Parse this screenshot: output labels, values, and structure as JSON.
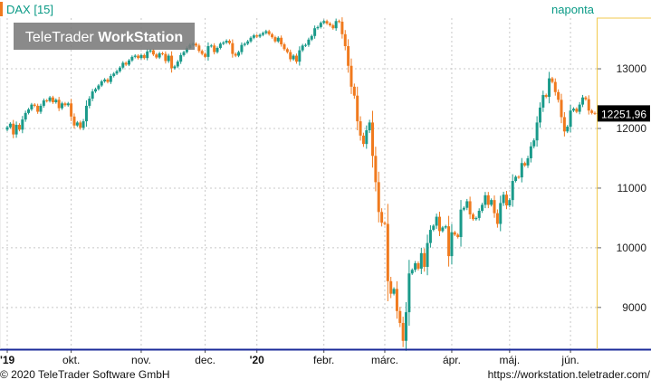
{
  "instrument": "DAX [15]",
  "period_label": "naponta",
  "watermark": {
    "brand": "TeleTrader",
    "product": "WorkStation"
  },
  "last_price_label": "12251,96",
  "footer": {
    "copyright": "© 2020 TeleTrader Software GmbH",
    "url": "https://workstation.teletrader.com/"
  },
  "colors": {
    "up": "#1a9a8a",
    "down": "#f07a1e",
    "accent_teal": "#0a9a86",
    "axis_bar": "#1a2a9a",
    "grid": "#c8c8c8",
    "right_axis_line": "#f2c94c",
    "price_tag_bg": "#000000"
  },
  "chart_data": {
    "type": "candlestick",
    "title": "DAX [15]",
    "interval": "naponta",
    "ylim": [
      8300,
      13850
    ],
    "yticks": [
      9000,
      10000,
      11000,
      12000,
      13000
    ],
    "ytick_labels": [
      "9000",
      "10000",
      "11000",
      "12000",
      "13000"
    ],
    "xticks": [
      {
        "label": "'19",
        "t": 0
      },
      {
        "label": "okt.",
        "t": 21
      },
      {
        "label": "nov.",
        "t": 44
      },
      {
        "label": "dec.",
        "t": 65
      },
      {
        "label": "'20",
        "t": 82
      },
      {
        "label": "febr.",
        "t": 104
      },
      {
        "label": "márc.",
        "t": 124
      },
      {
        "label": "ápr.",
        "t": 146
      },
      {
        "label": "máj.",
        "t": 165
      },
      {
        "label": "jún.",
        "t": 185
      }
    ],
    "last_value": 12251.96,
    "grid": true,
    "closes": [
      12020,
      12080,
      11900,
      12060,
      11980,
      12150,
      12260,
      12320,
      12400,
      12380,
      12280,
      12380,
      12470,
      12460,
      12520,
      12440,
      12480,
      12340,
      12420,
      12390,
      12420,
      12200,
      12050,
      12100,
      12010,
      12120,
      12380,
      12500,
      12620,
      12660,
      12720,
      12790,
      12820,
      12780,
      12880,
      12920,
      12960,
      13020,
      13100,
      13070,
      13140,
      13200,
      13220,
      13180,
      13230,
      13180,
      13290,
      13310,
      13240,
      13190,
      13260,
      13250,
      13130,
      13220,
      13010,
      13040,
      13120,
      13230,
      13280,
      13350,
      13400,
      13420,
      13390,
      13300,
      13250,
      13200,
      13380,
      13390,
      13280,
      13350,
      13420,
      13440,
      13470,
      13430,
      13250,
      13220,
      13280,
      13400,
      13420,
      13460,
      13520,
      13560,
      13540,
      13570,
      13600,
      13630,
      13580,
      13530,
      13460,
      13520,
      13410,
      13330,
      13280,
      13160,
      13220,
      13120,
      13310,
      13390,
      13400,
      13490,
      13550,
      13680,
      13700,
      13770,
      13800,
      13760,
      13730,
      13680,
      13800,
      13790,
      13580,
      13380,
      13050,
      12700,
      12550,
      12120,
      11880,
      11740,
      11970,
      12100,
      11540,
      11100,
      10600,
      10420,
      10400,
      9440,
      9230,
      9310,
      8940,
      8740,
      8440,
      8920,
      9570,
      9630,
      9740,
      9650,
      9910,
      9680,
      10080,
      10300,
      10370,
      10520,
      10280,
      10340,
      10360,
      9860,
      10260,
      10220,
      10180,
      10640,
      10670,
      10780,
      10560,
      10480,
      10500,
      10620,
      10720,
      10880,
      10720,
      10800,
      10580,
      10400,
      10750,
      10890,
      10710,
      10800,
      11120,
      11190,
      11180,
      11420,
      11380,
      11500,
      11700,
      11800,
      12100,
      12350,
      12560,
      12530,
      12840,
      12780,
      12610,
      12480,
      12190,
      11950,
      12030,
      12300,
      12330,
      12280,
      12400,
      12520,
      12490,
      12300,
      12260,
      12252
    ]
  }
}
